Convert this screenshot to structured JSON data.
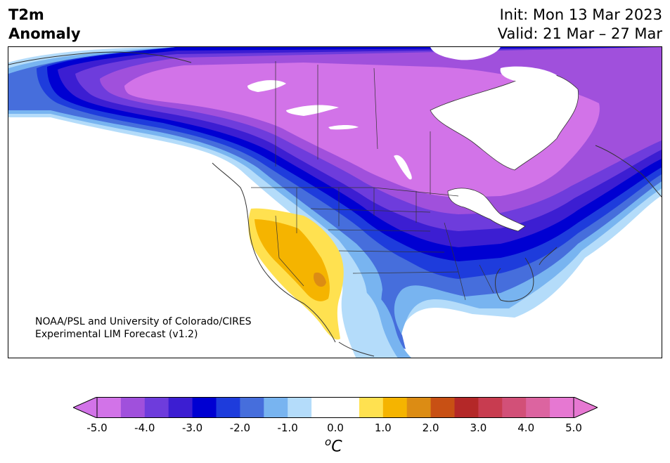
{
  "header": {
    "title_line1": "T2m",
    "title_line2": "Anomaly",
    "init": "Init: Mon 13 Mar 2023",
    "valid": "Valid: 21 Mar – 27 Mar"
  },
  "map": {
    "credit_line1": "NOAA/PSL and University of Colorado/CIRES",
    "credit_line2": "Experimental LIM Forecast (v1.2)"
  },
  "colorbar": {
    "unit_base": "C",
    "unit_sup": "o",
    "ticks": [
      "-5.0",
      "-4.0",
      "-3.0",
      "-2.0",
      "-1.0",
      "0.0",
      "1.0",
      "2.0",
      "3.0",
      "4.0",
      "5.0"
    ],
    "tick_values": [
      -5,
      -4,
      -3,
      -2,
      -1,
      0,
      1,
      2,
      3,
      4,
      5
    ],
    "colors": [
      "#d273e8",
      "#a050dc",
      "#6e3cdc",
      "#3c1ed2",
      "#0000d2",
      "#1e3cdc",
      "#466edc",
      "#78b4f0",
      "#b4dcfa",
      "#ffffff",
      "#ffffff",
      "#ffe150",
      "#f5b400",
      "#dc8c14",
      "#c85014",
      "#b42828",
      "#c83c50",
      "#d25078",
      "#dc64a0",
      "#e678d2"
    ],
    "under_color": "#d273e8",
    "over_color": "#e678d2"
  }
}
